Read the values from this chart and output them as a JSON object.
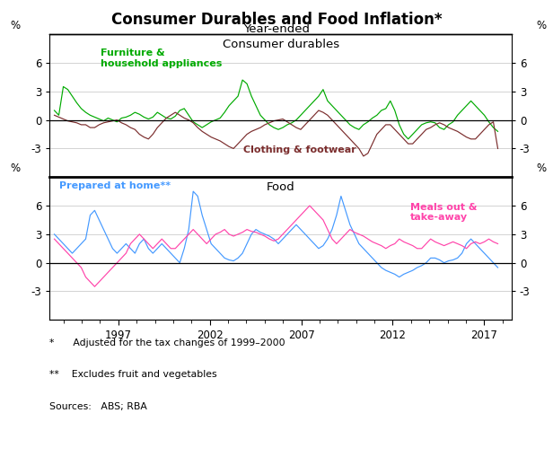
{
  "title": "Consumer Durables and Food Inflation*",
  "subtitle": "Year-ended",
  "panel1_title": "Consumer durables",
  "panel2_title": "Food",
  "xlabel_years": [
    1997,
    2002,
    2007,
    2012,
    2017
  ],
  "yticks": [
    -3,
    0,
    3,
    6
  ],
  "footnote1": "*      Adjusted for the tax changes of 1999–2000",
  "footnote2": "**    Excludes fruit and vegetables",
  "footnote3": "Sources:   ABS; RBA",
  "furniture_color": "#00AA00",
  "clothing_color": "#7B2D2D",
  "prepared_color": "#4499FF",
  "meals_color": "#FF44AA",
  "furniture_label": "Furniture &\nhousehold appliances",
  "clothing_label": "Clothing & footwear",
  "prepared_label": "Prepared at home**",
  "meals_label": "Meals out &\ntake-away",
  "furniture_data": [
    1.0,
    0.5,
    3.5,
    3.2,
    2.5,
    1.8,
    1.2,
    0.8,
    0.5,
    0.3,
    0.1,
    -0.1,
    0.2,
    0.0,
    -0.2,
    0.2,
    0.3,
    0.5,
    0.8,
    0.6,
    0.3,
    0.1,
    0.3,
    0.8,
    0.5,
    0.2,
    0.1,
    0.4,
    1.0,
    1.2,
    0.5,
    -0.2,
    -0.5,
    -0.8,
    -0.5,
    -0.2,
    0.0,
    0.2,
    0.8,
    1.5,
    2.0,
    2.5,
    4.2,
    3.8,
    2.5,
    1.5,
    0.5,
    0.0,
    -0.5,
    -0.8,
    -1.0,
    -0.8,
    -0.5,
    -0.3,
    0.0,
    0.5,
    1.0,
    1.5,
    2.0,
    2.5,
    3.2,
    2.0,
    1.5,
    1.0,
    0.5,
    0.0,
    -0.5,
    -0.8,
    -1.0,
    -0.5,
    -0.2,
    0.2,
    0.5,
    1.0,
    1.2,
    2.0,
    1.0,
    -0.5,
    -1.5,
    -2.0,
    -1.5,
    -1.0,
    -0.5,
    -0.3,
    -0.2,
    -0.3,
    -0.8,
    -1.0,
    -0.5,
    -0.2,
    0.5,
    1.0,
    1.5,
    2.0,
    1.5,
    1.0,
    0.5,
    -0.2,
    -0.8,
    -1.2
  ],
  "clothing_data": [
    0.5,
    0.3,
    0.1,
    -0.1,
    -0.2,
    -0.3,
    -0.5,
    -0.5,
    -0.8,
    -0.8,
    -0.5,
    -0.3,
    -0.2,
    -0.1,
    0.0,
    -0.3,
    -0.5,
    -0.8,
    -1.0,
    -1.5,
    -1.8,
    -2.0,
    -1.5,
    -0.8,
    -0.3,
    0.2,
    0.5,
    0.8,
    0.5,
    0.2,
    0.0,
    -0.3,
    -0.8,
    -1.2,
    -1.5,
    -1.8,
    -2.0,
    -2.2,
    -2.5,
    -2.8,
    -3.0,
    -2.5,
    -2.0,
    -1.5,
    -1.2,
    -1.0,
    -0.8,
    -0.5,
    -0.3,
    -0.1,
    0.0,
    0.1,
    -0.2,
    -0.5,
    -0.8,
    -1.0,
    -0.5,
    0.0,
    0.5,
    1.0,
    0.8,
    0.5,
    0.0,
    -0.5,
    -1.0,
    -1.5,
    -2.0,
    -2.5,
    -3.0,
    -3.8,
    -3.5,
    -2.5,
    -1.5,
    -1.0,
    -0.5,
    -0.5,
    -1.0,
    -1.5,
    -2.0,
    -2.5,
    -2.5,
    -2.0,
    -1.5,
    -1.0,
    -0.8,
    -0.5,
    -0.3,
    -0.5,
    -0.8,
    -1.0,
    -1.2,
    -1.5,
    -1.8,
    -2.0,
    -2.0,
    -1.5,
    -1.0,
    -0.5,
    -0.2,
    -3.0
  ],
  "prepared_data": [
    3.0,
    2.5,
    2.0,
    1.5,
    1.0,
    1.5,
    2.0,
    2.5,
    5.0,
    5.5,
    4.5,
    3.5,
    2.5,
    1.5,
    1.0,
    1.5,
    2.0,
    1.5,
    1.0,
    2.0,
    2.5,
    1.5,
    1.0,
    1.5,
    2.0,
    1.5,
    1.0,
    0.5,
    0.0,
    1.5,
    3.5,
    7.5,
    7.0,
    5.0,
    3.5,
    2.0,
    1.5,
    1.0,
    0.5,
    0.3,
    0.2,
    0.5,
    1.0,
    2.0,
    3.0,
    3.5,
    3.2,
    3.0,
    2.8,
    2.5,
    2.0,
    2.5,
    3.0,
    3.5,
    4.0,
    3.5,
    3.0,
    2.5,
    2.0,
    1.5,
    1.8,
    2.5,
    3.5,
    5.0,
    7.0,
    5.5,
    4.0,
    3.0,
    2.0,
    1.5,
    1.0,
    0.5,
    0.0,
    -0.5,
    -0.8,
    -1.0,
    -1.2,
    -1.5,
    -1.2,
    -1.0,
    -0.8,
    -0.5,
    -0.3,
    0.0,
    0.5,
    0.5,
    0.3,
    0.0,
    0.2,
    0.3,
    0.5,
    1.0,
    2.0,
    2.5,
    2.0,
    1.5,
    1.0,
    0.5,
    0.0,
    -0.5
  ],
  "meals_data": [
    2.5,
    2.0,
    1.5,
    1.0,
    0.5,
    0.0,
    -0.5,
    -1.5,
    -2.0,
    -2.5,
    -2.0,
    -1.5,
    -1.0,
    -0.5,
    0.0,
    0.5,
    1.0,
    2.0,
    2.5,
    3.0,
    2.5,
    2.0,
    1.5,
    2.0,
    2.5,
    2.0,
    1.5,
    1.5,
    2.0,
    2.5,
    3.0,
    3.5,
    3.0,
    2.5,
    2.0,
    2.5,
    3.0,
    3.2,
    3.5,
    3.0,
    2.8,
    3.0,
    3.2,
    3.5,
    3.3,
    3.2,
    3.0,
    2.8,
    2.5,
    2.3,
    2.5,
    3.0,
    3.5,
    4.0,
    4.5,
    5.0,
    5.5,
    6.0,
    5.5,
    5.0,
    4.5,
    3.5,
    2.5,
    2.0,
    2.5,
    3.0,
    3.5,
    3.2,
    3.0,
    2.8,
    2.5,
    2.2,
    2.0,
    1.8,
    1.5,
    1.8,
    2.0,
    2.5,
    2.2,
    2.0,
    1.8,
    1.5,
    1.5,
    2.0,
    2.5,
    2.2,
    2.0,
    1.8,
    2.0,
    2.2,
    2.0,
    1.8,
    1.5,
    2.0,
    2.2,
    2.0,
    2.2,
    2.5,
    2.2,
    2.0
  ],
  "start_year": 1993.5,
  "end_year": 2017.75,
  "xlim_start": 1993.25,
  "xlim_end": 2018.5
}
